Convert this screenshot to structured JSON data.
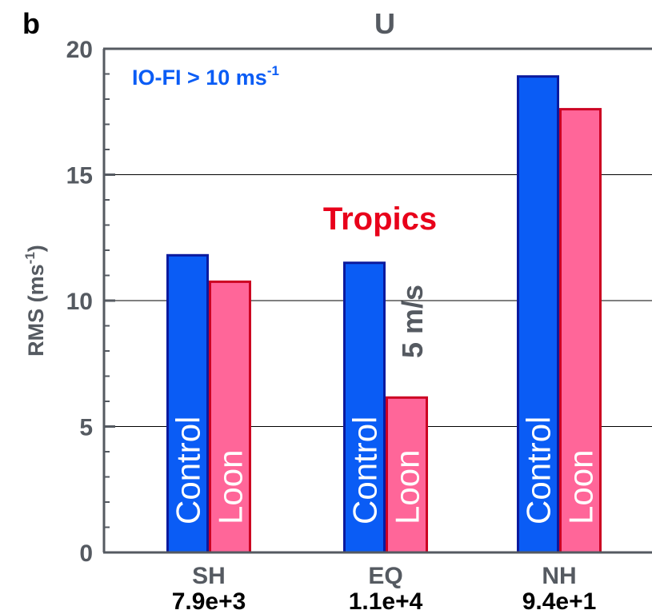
{
  "panel_label": "b",
  "chart_data": {
    "type": "bar",
    "title": "U",
    "ylabel": "RMS (ms",
    "ylabel_sup": "-1",
    "ylabel_close": ")",
    "ylim": [
      0,
      20
    ],
    "yticks": [
      0,
      5,
      10,
      15,
      20
    ],
    "grid": "horizontal",
    "categories": [
      "SH",
      "EQ",
      "NH"
    ],
    "category_sublabels": [
      "7.9e+3",
      "1.1e+4",
      "9.4e+1"
    ],
    "series": [
      {
        "name": "Control",
        "color": "#0a5cf5",
        "edge": "#0b1a9e",
        "values": [
          11.8,
          11.5,
          18.9
        ]
      },
      {
        "name": "Loon",
        "color": "#ff6699",
        "edge": "#cc0022",
        "values": [
          10.75,
          6.15,
          17.6
        ]
      }
    ],
    "annotations": {
      "filter_text": "IO-FI > 10 ms",
      "filter_sup": "-1",
      "filter_color": "#0a5cf5",
      "region_text": "Tropics",
      "region_color": "#e8001a",
      "diff_text": "5 m/s",
      "diff_color": "#555a61"
    }
  }
}
